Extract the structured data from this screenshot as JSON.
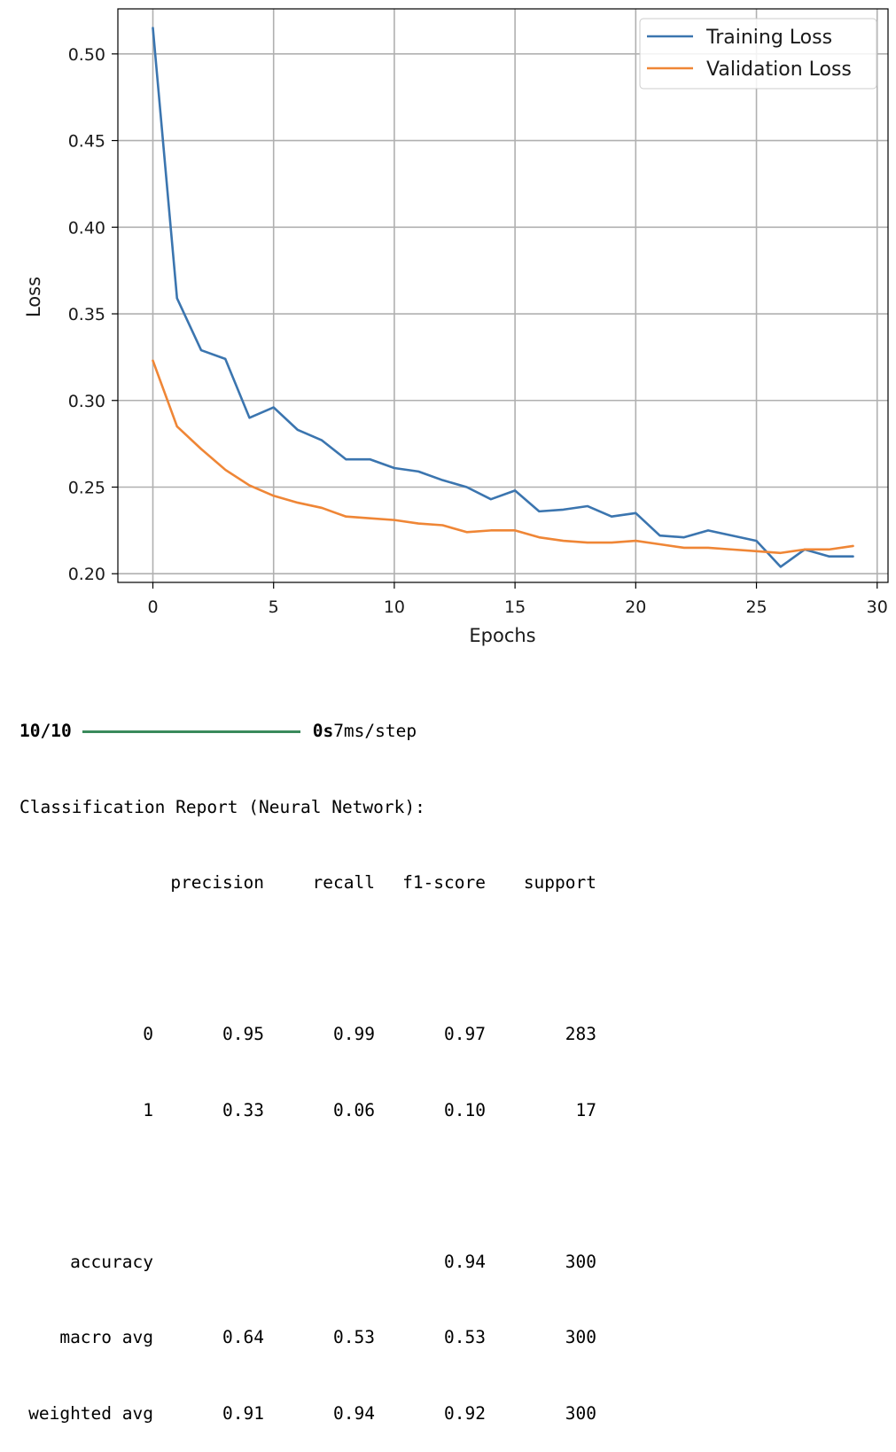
{
  "chart_data": {
    "type": "line",
    "title": "",
    "xlabel": "Epochs",
    "ylabel": "Loss",
    "xlim": [
      -1.45,
      30.45
    ],
    "ylim": [
      0.195,
      0.526
    ],
    "xticks": [
      0,
      5,
      10,
      15,
      20,
      25,
      30
    ],
    "yticks": [
      0.2,
      0.25,
      0.3,
      0.35,
      0.4,
      0.45,
      0.5
    ],
    "ytick_labels": [
      "0.20",
      "0.25",
      "0.30",
      "0.35",
      "0.40",
      "0.45",
      "0.50"
    ],
    "grid": true,
    "legend_position": "top-right",
    "x": [
      0,
      1,
      2,
      3,
      4,
      5,
      6,
      7,
      8,
      9,
      10,
      11,
      12,
      13,
      14,
      15,
      16,
      17,
      18,
      19,
      20,
      21,
      22,
      23,
      24,
      25,
      26,
      27,
      28,
      29
    ],
    "series": [
      {
        "name": "Training Loss",
        "color": "#3b75af",
        "values": [
          0.515,
          0.359,
          0.329,
          0.324,
          0.29,
          0.296,
          0.283,
          0.277,
          0.266,
          0.266,
          0.261,
          0.259,
          0.254,
          0.25,
          0.243,
          0.248,
          0.236,
          0.237,
          0.239,
          0.233,
          0.235,
          0.222,
          0.221,
          0.225,
          0.222,
          0.219,
          0.204,
          0.214,
          0.21,
          0.21
        ]
      },
      {
        "name": "Validation Loss",
        "color": "#ef8636",
        "values": [
          0.323,
          0.285,
          0.272,
          0.26,
          0.251,
          0.245,
          0.241,
          0.238,
          0.233,
          0.232,
          0.231,
          0.229,
          0.228,
          0.224,
          0.225,
          0.225,
          0.221,
          0.219,
          0.218,
          0.218,
          0.219,
          0.217,
          0.215,
          0.215,
          0.214,
          0.213,
          0.212,
          0.214,
          0.214,
          0.216
        ]
      }
    ]
  },
  "console": {
    "progress": {
      "steps": "10/10",
      "time": "0s",
      "rate": "7ms/step",
      "fraction": 1.0
    },
    "report_title": "Classification Report (Neural Network):",
    "headers": [
      "precision",
      "recall",
      "f1-score",
      "support"
    ],
    "rows": [
      {
        "label": "0",
        "values": [
          "0.95",
          "0.99",
          "0.97",
          "283"
        ]
      },
      {
        "label": "1",
        "values": [
          "0.33",
          "0.06",
          "0.10",
          "17"
        ]
      },
      {
        "label": "accuracy",
        "values": [
          "",
          "",
          "0.94",
          "300"
        ]
      },
      {
        "label": "macro avg",
        "values": [
          "0.64",
          "0.53",
          "0.53",
          "300"
        ]
      },
      {
        "label": "weighted avg",
        "values": [
          "0.91",
          "0.94",
          "0.92",
          "300"
        ]
      }
    ]
  }
}
